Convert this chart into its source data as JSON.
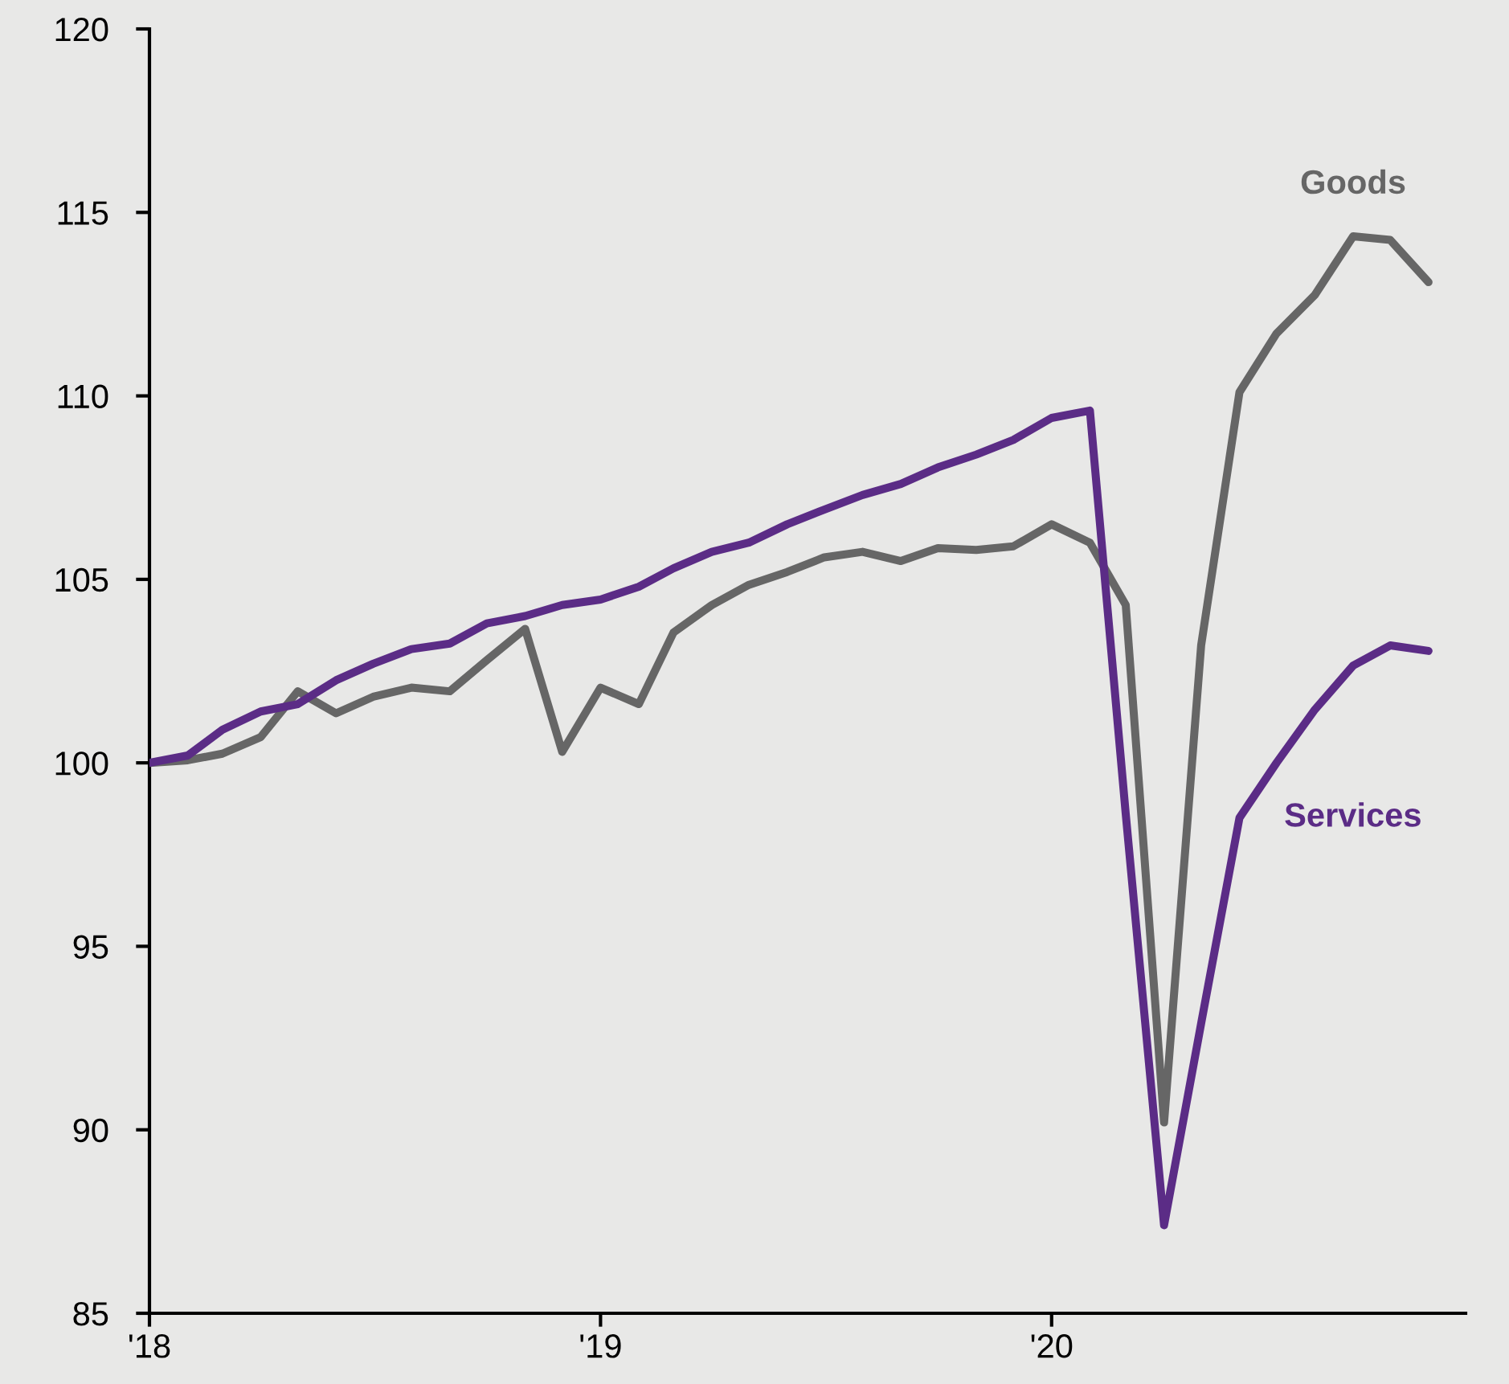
{
  "chart_data": {
    "type": "line",
    "x": [
      "2018-01",
      "2018-02",
      "2018-03",
      "2018-04",
      "2018-05",
      "2018-06",
      "2018-07",
      "2018-08",
      "2018-09",
      "2018-10",
      "2018-11",
      "2018-12",
      "2019-01",
      "2019-02",
      "2019-03",
      "2019-04",
      "2019-05",
      "2019-06",
      "2019-07",
      "2019-08",
      "2019-09",
      "2019-10",
      "2019-11",
      "2019-12",
      "2020-01",
      "2020-02",
      "2020-03",
      "2020-04",
      "2020-05",
      "2020-06",
      "2020-07",
      "2020-08",
      "2020-09",
      "2020-10",
      "2020-11"
    ],
    "series": [
      {
        "name": "Goods",
        "color": "#666666",
        "values": [
          100.0,
          100.07,
          100.25,
          100.7,
          101.95,
          101.35,
          101.8,
          102.05,
          101.95,
          102.8,
          103.65,
          100.3,
          102.05,
          101.6,
          103.55,
          104.3,
          104.85,
          105.2,
          105.6,
          105.75,
          105.5,
          105.85,
          105.8,
          105.9,
          106.5,
          106.0,
          104.3,
          90.2,
          103.2,
          110.1,
          111.7,
          112.75,
          114.35,
          114.25,
          113.1
        ]
      },
      {
        "name": "Services",
        "color": "#5b2c86",
        "values": [
          100.0,
          100.2,
          100.9,
          101.4,
          101.6,
          102.25,
          102.7,
          103.1,
          103.25,
          103.8,
          104.0,
          104.3,
          104.45,
          104.8,
          105.3,
          105.75,
          106.0,
          106.5,
          106.9,
          107.3,
          107.6,
          108.05,
          108.4,
          108.8,
          109.4,
          109.6,
          98.6,
          87.4,
          92.9,
          98.5,
          100.0,
          101.45,
          102.65,
          103.2,
          103.05
        ]
      }
    ],
    "xlim": [
      "2018-01",
      "2020-12"
    ],
    "xticks": [
      {
        "value": "2018-01",
        "label": "'18"
      },
      {
        "value": "2019-01",
        "label": "'19"
      },
      {
        "value": "2020-01",
        "label": "'20"
      }
    ],
    "ylim": [
      85,
      120
    ],
    "yticks": [
      85,
      90,
      95,
      100,
      105,
      110,
      115,
      120
    ],
    "grid": false,
    "line_style": "solid"
  }
}
